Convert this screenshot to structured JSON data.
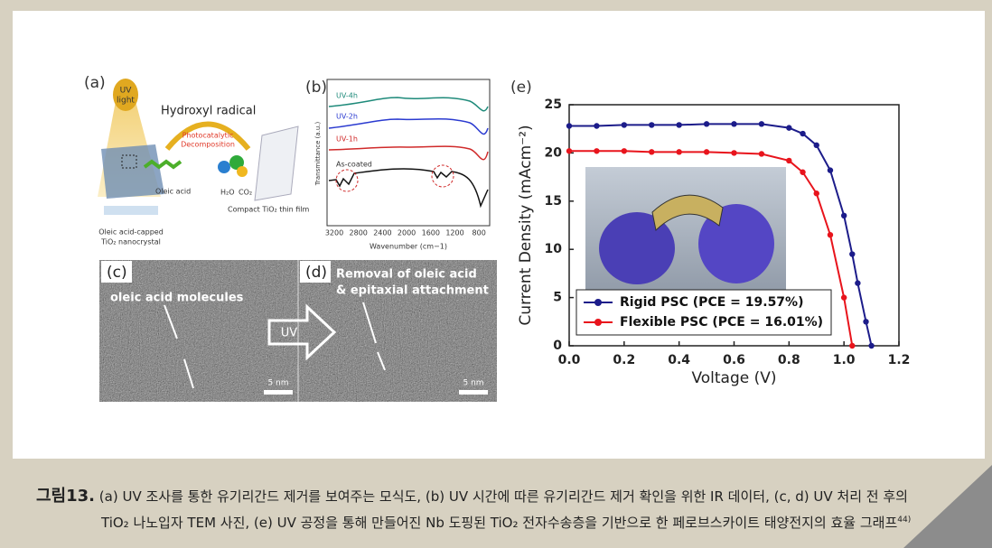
{
  "panel_a": {
    "label": "(a)",
    "uv_light": [
      "UV",
      "light"
    ],
    "radical": "Hydroxyl radical",
    "process": [
      "Photocatalytic",
      "Decomposition"
    ],
    "oleic_acid": "Oleic acid",
    "h2o": "H₂O",
    "co2": "CO₂",
    "film": "Compact TiO₂ thin film",
    "nanocrystal": [
      "Oleic acid-capped",
      "TiO₂ nanocrystal"
    ]
  },
  "panel_b": {
    "label": "(b)",
    "series_labels": [
      "UV-4h",
      "UV-2h",
      "UV-1h",
      "As-coated"
    ],
    "y_label": "Transmittance (a.u.)",
    "x_label": "Wavenumber (cm−1)",
    "x_ticks": [
      3200,
      2800,
      2400,
      2000,
      1600,
      1200,
      800
    ]
  },
  "panel_c": {
    "label": "(c)",
    "annotation": "oleic acid molecules",
    "scale": "5 nm"
  },
  "panel_d": {
    "label": "(d)",
    "annotation": [
      "Removal of oleic acid",
      "& epitaxial attachment"
    ],
    "arrow": "UV",
    "scale": "5 nm"
  },
  "chart_data": {
    "type": "line",
    "label": "(e)",
    "x_label": "Voltage (V)",
    "y_label": "Current Density (mAcm⁻²)",
    "x": [
      0,
      0.1,
      0.2,
      0.3,
      0.4,
      0.5,
      0.6,
      0.7,
      0.8,
      0.85,
      0.9,
      0.95,
      1.0,
      1.03,
      1.05,
      1.08,
      1.1
    ],
    "series": [
      {
        "name": "Rigid PSC (PCE = 19.57%)",
        "color": "#1c1c8a",
        "values": [
          22.8,
          22.8,
          22.9,
          22.9,
          22.9,
          23.0,
          23.0,
          23.0,
          22.6,
          22.0,
          20.8,
          18.2,
          13.5,
          9.5,
          6.5,
          2.5,
          0
        ]
      },
      {
        "name": "Flexible PSC (PCE = 16.01%)",
        "color": "#e8141c",
        "values": [
          20.2,
          20.2,
          20.2,
          20.1,
          20.1,
          20.1,
          20.0,
          19.9,
          19.2,
          18.0,
          15.8,
          11.5,
          5.0,
          0,
          null,
          null,
          null
        ]
      }
    ],
    "xlim": [
      0,
      1.2
    ],
    "xticks": [
      {
        "value": 0,
        "label": "0.0"
      },
      {
        "value": 0.2,
        "label": "0.2"
      },
      {
        "value": 0.4,
        "label": "0.4"
      },
      {
        "value": 0.6,
        "label": "0.6"
      },
      {
        "value": 0.8,
        "label": "0.8"
      },
      {
        "value": 1.0,
        "label": "1.0"
      },
      {
        "value": 1.2,
        "label": "1.2"
      }
    ],
    "ylim": [
      0,
      25
    ],
    "yticks": [
      0,
      5,
      10,
      15,
      20,
      25
    ],
    "legend": "lower-left"
  },
  "caption": {
    "number": "그림13.",
    "lines": [
      "(a) UV 조사를 통한 유기리간드 제거를 보여주는 모식도, (b) UV 시간에 따른 유기리간드 제거 확인을 위한 IR 데이터, (c, d) UV 처리 전 후의",
      "TiO₂ 나노입자 TEM 사진, (e) UV 공정을 통해 만들어진 Nb 도핑된 TiO₂ 전자수송층을 기반으로 한 페로브스카이트 태양전지의 효율 그래프"
    ],
    "ref": "44)"
  }
}
